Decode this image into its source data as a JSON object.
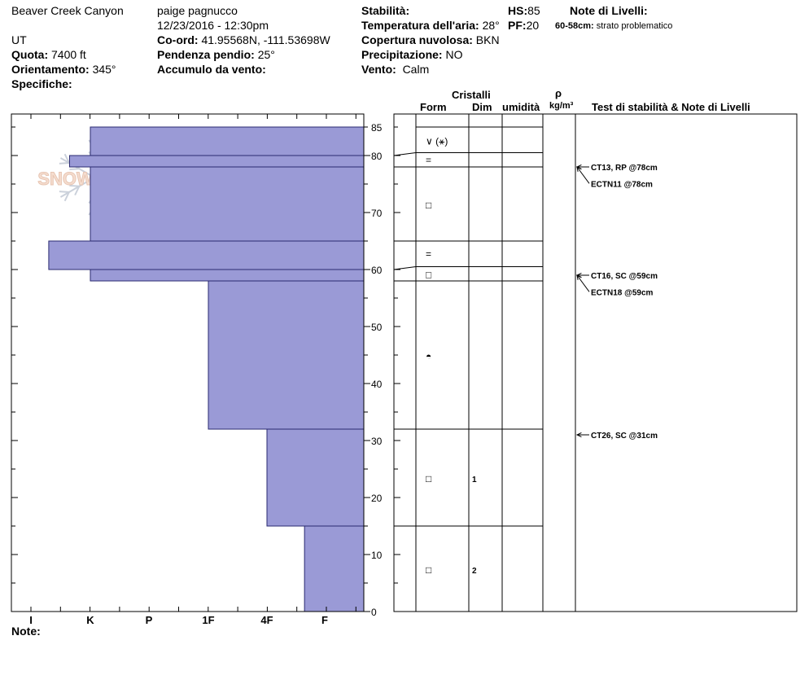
{
  "header": {
    "location": "Beaver Creek Canyon",
    "state": "UT",
    "observer": "paige pagnucco",
    "datetime": "12/23/2016 - 12:30pm",
    "elevation_label": "Quota:",
    "elevation": "7400 ft",
    "aspect_label": "Orientamento:",
    "aspect": "345°",
    "specifics_label": "Specifiche:",
    "coord_label": "Co-ord:",
    "coord": "41.95568N, -111.53698W",
    "slope_label": "Pendenza pendio:",
    "slope": "25°",
    "wind_loading_label": "Accumulo da vento:",
    "stability_label": "Stabilità:",
    "air_temp_label": "Temperatura dell'aria:",
    "air_temp": "28°",
    "cloud_label": "Copertura nuvolosa:",
    "cloud": "BKN",
    "precip_label": "Precipitazione:",
    "precip": "NO",
    "wind_label": "Vento:",
    "wind": "Calm",
    "hs_label": "HS:",
    "hs": "85",
    "pf_label": "PF:",
    "pf": "20",
    "layer_notes_label": "Note di Livelli:",
    "layer_note_range": "60-58cm:",
    "layer_note_text": "strato problematico"
  },
  "columns": {
    "crystals": "Cristalli",
    "form": "Form",
    "size": "Dim",
    "moisture": "umidità",
    "rho": "ρ",
    "density_unit": "kg/m³",
    "tests_notes": "Test di stabilità & Note di Livelli"
  },
  "notes_label": "Note:",
  "logo_text": "SNOW PILOT",
  "colors": {
    "hardness_fill": "#9a9ad6",
    "hardness_stroke": "#2a2a70"
  },
  "chart_data": {
    "type": "bar",
    "orientation": "horizontal",
    "ylim": [
      0,
      85
    ],
    "yticks": [
      0,
      10,
      20,
      30,
      40,
      50,
      60,
      70,
      80,
      85
    ],
    "hardness_scale": [
      "I",
      "K",
      "P",
      "1F",
      "4F",
      "F"
    ],
    "hardness_layers": [
      {
        "bottom": 0,
        "top": 15,
        "hardness": 4.65
      },
      {
        "bottom": 15,
        "top": 32,
        "hardness": 4.0
      },
      {
        "bottom": 32,
        "top": 58,
        "hardness": 3.0
      },
      {
        "bottom": 58,
        "top": 60,
        "hardness": 1.0
      },
      {
        "bottom": 60,
        "top": 65,
        "hardness": 0.3
      },
      {
        "bottom": 65,
        "top": 78,
        "hardness": 1.0
      },
      {
        "bottom": 78,
        "top": 80,
        "hardness": 0.65
      },
      {
        "bottom": 80,
        "top": 85,
        "hardness": 1.0
      }
    ],
    "layer_boundaries": [
      85,
      80.5,
      78,
      65,
      60.5,
      58,
      32,
      15
    ],
    "crystal_rows": [
      {
        "height": 82.5,
        "form": "∨ (⚹)",
        "size": ""
      },
      {
        "height": 79.2,
        "form": "=",
        "size": ""
      },
      {
        "height": 71.3,
        "form": "□",
        "size": ""
      },
      {
        "height": 62.7,
        "form": "=",
        "size": ""
      },
      {
        "height": 59.1,
        "form": "□",
        "size": ""
      },
      {
        "height": 44.8,
        "form": "◓",
        "size": ""
      },
      {
        "height": 23.3,
        "form": "□",
        "size": "1"
      },
      {
        "height": 7.3,
        "form": "□",
        "size": "2"
      }
    ],
    "stability_tests": [
      {
        "height": 78,
        "label_height": 78,
        "text": "CT13, RP @78cm"
      },
      {
        "height": 78,
        "label_height": 75.1,
        "text": "ECTN11 @78cm"
      },
      {
        "height": 59,
        "label_height": 59,
        "text": "CT16, SC @59cm"
      },
      {
        "height": 59,
        "label_height": 56.1,
        "text": "ECTN18 @59cm"
      },
      {
        "height": 31,
        "label_height": 31,
        "text": "CT26, SC @31cm"
      }
    ]
  }
}
